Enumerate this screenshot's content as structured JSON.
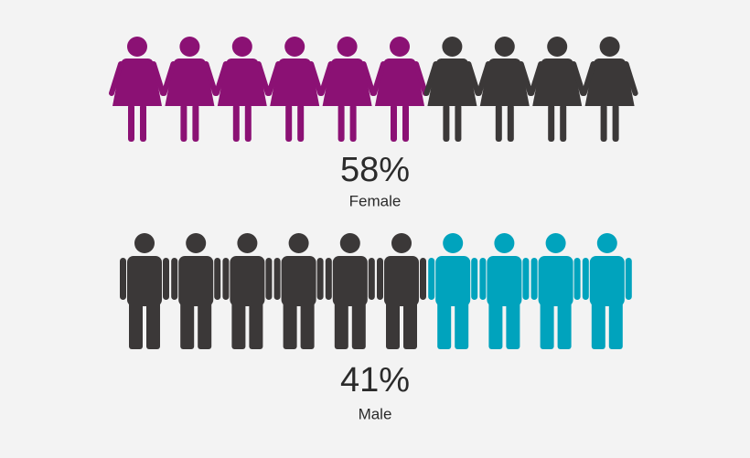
{
  "chart_data": {
    "type": "pictogram",
    "series": [
      {
        "name": "Female",
        "value": 58,
        "value_label": "58%",
        "icon": "female",
        "color": "#8b1174",
        "filled": 6,
        "total": 10
      },
      {
        "name": "Male",
        "value": 41,
        "value_label": "41%",
        "icon": "male",
        "color": "#00a3bd",
        "filled": 4,
        "total": 10,
        "filled_side": "right"
      }
    ],
    "other_color": "#3b3838"
  }
}
